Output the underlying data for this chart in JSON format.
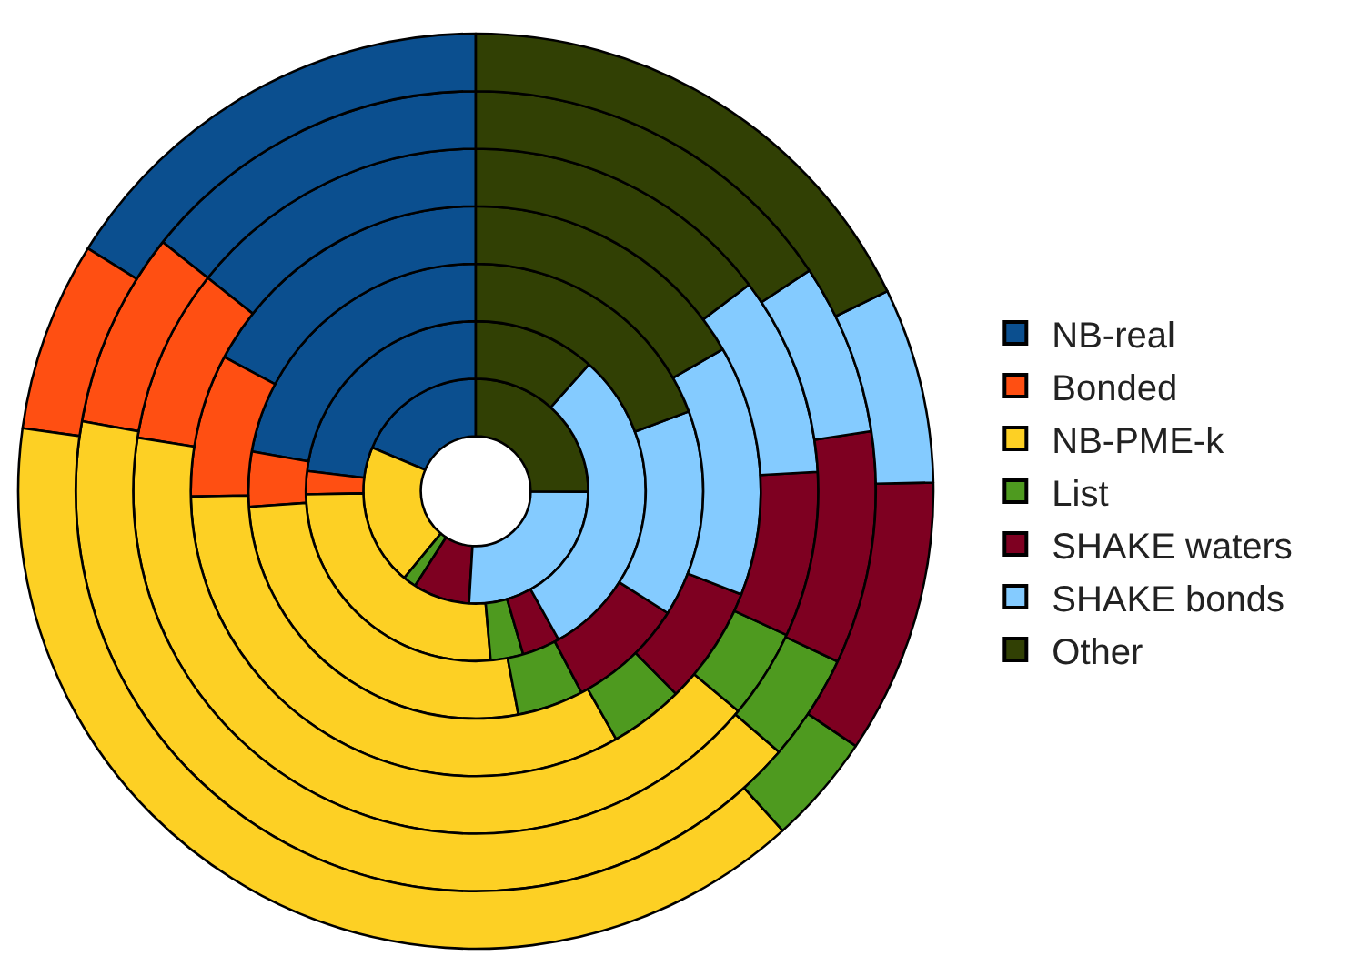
{
  "chart_data": {
    "type": "donut",
    "categories": [
      "NB-real",
      "Bonded",
      "NB-PME-k",
      "List",
      "SHAKE waters",
      "SHAKE bonds",
      "Other"
    ],
    "colors": [
      "#0b4f8f",
      "#ff4f12",
      "#fdd024",
      "#4e9a1f",
      "#7e0021",
      "#84cbff",
      "#314004"
    ],
    "series": [
      {
        "values": [
          18.6,
          null,
          20.3,
          1.9,
          8.1,
          25.8,
          25.0
        ]
      },
      {
        "values": [
          23.1,
          2.2,
          26.1,
          3.1,
          3.6,
          30.3,
          11.6
        ]
      },
      {
        "values": [
          22.2,
          3.9,
          26.9,
          4.7,
          8.3,
          14.7,
          19.3
        ]
      },
      {
        "values": [
          17.2,
          8.1,
          32.9,
          4.2,
          6.7,
          14.2,
          16.7
        ]
      },
      {
        "values": [
          14.3,
          8.2,
          41.4,
          4.2,
          7.8,
          9.4,
          14.7
        ]
      },
      {
        "values": [
          14.3,
          7.9,
          41.5,
          4.3,
          9.4,
          6.9,
          15.7
        ]
      },
      {
        "values": [
          16.1,
          6.7,
          38.9,
          3.9,
          9.7,
          6.9,
          17.8
        ]
      }
    ],
    "legend": "right"
  }
}
